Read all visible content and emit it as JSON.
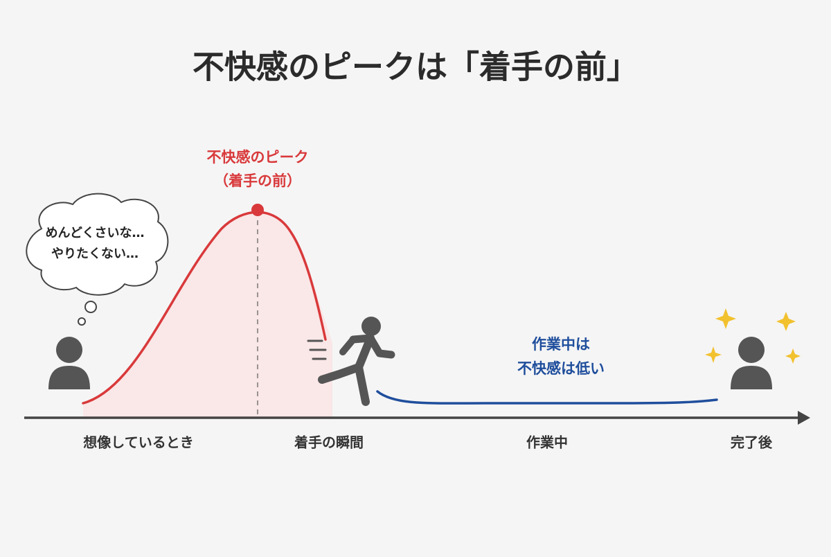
{
  "title": "不快感のピークは「着手の前」",
  "peak_label": [
    "不快感のピーク",
    "（着手の前）"
  ],
  "thought": [
    "めんどくさいな…",
    "やりたくない…"
  ],
  "low_label": [
    "作業中は",
    "不快感は低い"
  ],
  "stages": [
    "想像しているとき",
    "着手の瞬間",
    "作業中",
    "完了後"
  ]
}
